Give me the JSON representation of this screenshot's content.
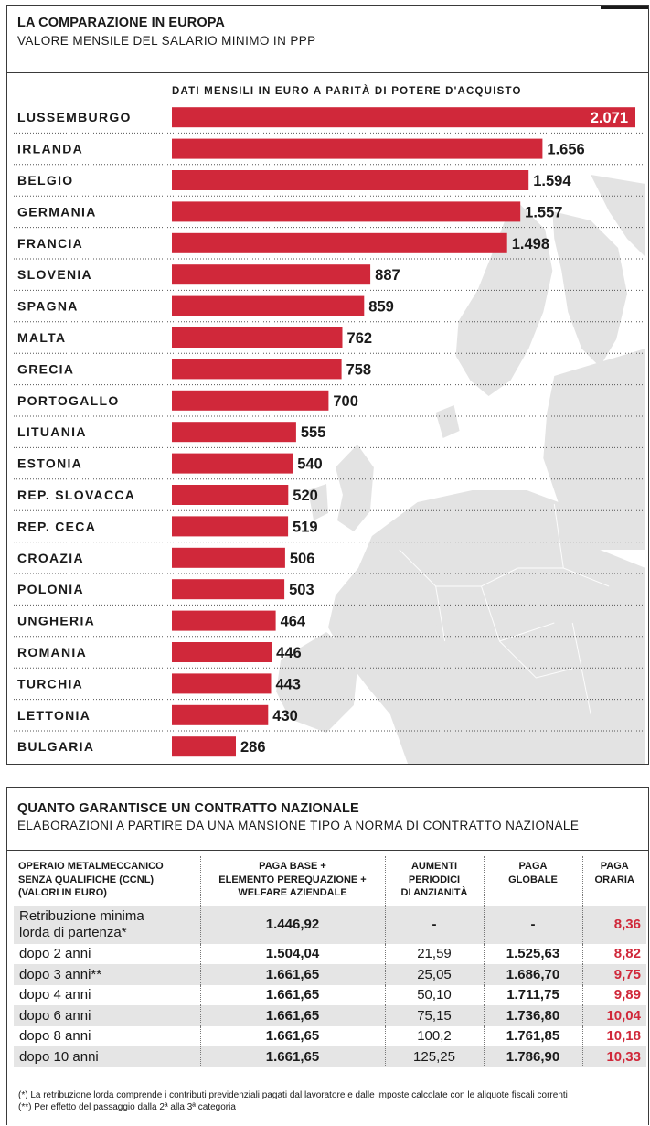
{
  "panel1": {
    "title": "LA COMPARAZIONE IN EUROPA",
    "subtitle": "VALORE MENSILE DEL SALARIO MINIMO IN PPP",
    "unit_label": "DATI MENSILI IN EURO A PARITÀ DI POTERE D'ACQUISTO"
  },
  "chart_data": {
    "type": "bar",
    "orientation": "horizontal",
    "title": "LA COMPARAZIONE IN EUROPA",
    "subtitle": "VALORE MENSILE DEL SALARIO MINIMO IN PPP",
    "xlabel": "DATI MENSILI IN EURO A PARITÀ DI POTERE D'ACQUISTO",
    "categories": [
      "LUSSEMBURGO",
      "IRLANDA",
      "BELGIO",
      "GERMANIA",
      "FRANCIA",
      "SLOVENIA",
      "SPAGNA",
      "MALTA",
      "GRECIA",
      "PORTOGALLO",
      "LITUANIA",
      "ESTONIA",
      "REP. SLOVACCA",
      "REP. CECA",
      "CROAZIA",
      "POLONIA",
      "UNGHERIA",
      "ROMANIA",
      "TURCHIA",
      "LETTONIA",
      "BULGARIA"
    ],
    "values": [
      2071,
      1656,
      1594,
      1557,
      1498,
      887,
      859,
      762,
      758,
      700,
      555,
      540,
      520,
      519,
      506,
      503,
      464,
      446,
      443,
      430,
      286
    ],
    "labels": [
      "2.071",
      "1.656",
      "1.594",
      "1.557",
      "1.498",
      "887",
      "859",
      "762",
      "758",
      "700",
      "555",
      "540",
      "520",
      "519",
      "506",
      "503",
      "464",
      "446",
      "443",
      "430",
      "286"
    ],
    "bar_color": "#d0283a",
    "grid": false
  },
  "panel2": {
    "title": "QUANTO GARANTISCE UN CONTRATTO NAZIONALE",
    "subtitle": "ELABORAZIONI A PARTIRE DA UNA MANSIONE TIPO A NORMA DI CONTRATTO NAZIONALE",
    "headers": {
      "c0": [
        "OPERAIO METALMECCANICO",
        "SENZA QUALIFICHE (CCNL)",
        "(VALORI IN EURO)"
      ],
      "c1": [
        "PAGA BASE +",
        "ELEMENTO PEREQUAZIONE +",
        "WELFARE AZIENDALE"
      ],
      "c2": [
        "AUMENTI",
        "PERIODICI",
        "DI ANZIANITÀ"
      ],
      "c3": [
        "PAGA",
        "GLOBALE"
      ],
      "c4": [
        "PAGA",
        "ORARIA"
      ]
    },
    "rows": [
      {
        "c0a": "Retribuzione minima",
        "c0b": "lorda di partenza*",
        "c1": "1.446,92",
        "c2": "-",
        "c3": "-",
        "c4": "8,36"
      },
      {
        "c0a": "dopo 2 anni",
        "c1": "1.504,04",
        "c2": "21,59",
        "c3": "1.525,63",
        "c4": "8,82"
      },
      {
        "c0a": "dopo 3 anni**",
        "c1": "1.661,65",
        "c2": "25,05",
        "c3": "1.686,70",
        "c4": "9,75"
      },
      {
        "c0a": "dopo 4 anni",
        "c1": "1.661,65",
        "c2": "50,10",
        "c3": "1.711,75",
        "c4": "9,89"
      },
      {
        "c0a": "dopo 6 anni",
        "c1": "1.661,65",
        "c2": "75,15",
        "c3": "1.736,80",
        "c4": "10,04"
      },
      {
        "c0a": "dopo 8 anni",
        "c1": "1.661,65",
        "c2": "100,2",
        "c3": "1.761,85",
        "c4": "10,18"
      },
      {
        "c0a": "dopo 10 anni",
        "c1": "1.661,65",
        "c2": "125,25",
        "c3": "1.786,90",
        "c4": "10,33"
      }
    ],
    "notes": [
      "(*) La retribuzione lorda comprende i contributi previdenziali pagati dal lavoratore e dalle imposte calcolate con le aliquote fiscali correnti",
      "(**) Per effetto del passaggio dalla 2ª alla 3ª categoria"
    ]
  }
}
